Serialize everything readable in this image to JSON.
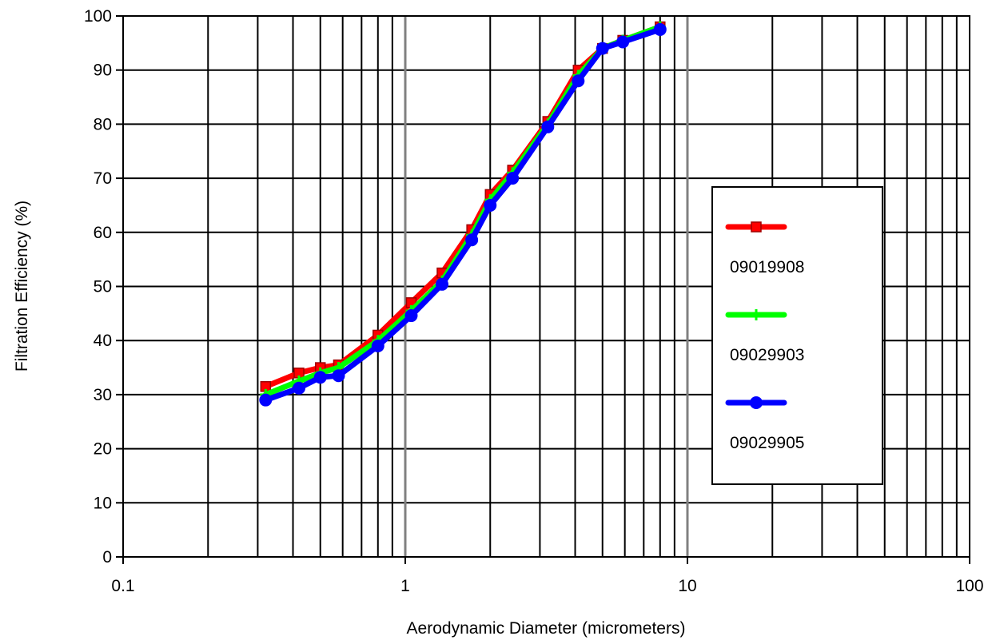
{
  "chart_data": {
    "type": "line",
    "xlabel": "Aerodynamic Diameter (micrometers)",
    "ylabel": "Filtration Efficiency (%)",
    "xscale": "log",
    "xlim": [
      0.1,
      100
    ],
    "ylim": [
      0,
      100
    ],
    "xticks": [
      {
        "value": 0.1,
        "label": "0.1"
      },
      {
        "value": 1,
        "label": "1"
      },
      {
        "value": 10,
        "label": "10"
      },
      {
        "value": 100,
        "label": "100"
      }
    ],
    "yticks": [
      {
        "value": 0,
        "label": "0"
      },
      {
        "value": 10,
        "label": "10"
      },
      {
        "value": 20,
        "label": "20"
      },
      {
        "value": 30,
        "label": "30"
      },
      {
        "value": 40,
        "label": "40"
      },
      {
        "value": 50,
        "label": "50"
      },
      {
        "value": 60,
        "label": "60"
      },
      {
        "value": 70,
        "label": "70"
      },
      {
        "value": 80,
        "label": "80"
      },
      {
        "value": 90,
        "label": "90"
      },
      {
        "value": 100,
        "label": "100"
      }
    ],
    "grid": true,
    "legend_position": "right",
    "x": [
      0.32,
      0.42,
      0.5,
      0.58,
      0.8,
      1.05,
      1.35,
      1.72,
      2.0,
      2.4,
      3.2,
      4.1,
      5.0,
      5.9,
      8.0
    ],
    "series": [
      {
        "name": "09019908",
        "color": "#ff0000",
        "marker": "square",
        "values": [
          31.5,
          34,
          35,
          35.5,
          41,
          47,
          52.5,
          60.5,
          67,
          71.5,
          80.5,
          90,
          94,
          95.5,
          98
        ]
      },
      {
        "name": "09029903",
        "color": "#00ff00",
        "marker": "plus",
        "values": [
          30,
          32.5,
          34,
          35,
          40,
          45.5,
          51,
          59.5,
          66,
          71,
          80,
          89,
          94,
          95.5,
          98
        ]
      },
      {
        "name": "09029905",
        "color": "#0000ff",
        "marker": "circle",
        "values": [
          29,
          31.2,
          33.2,
          33.5,
          39,
          44.6,
          50.4,
          58.6,
          65,
          70,
          79.5,
          88,
          94,
          95.2,
          97.5
        ]
      }
    ]
  }
}
